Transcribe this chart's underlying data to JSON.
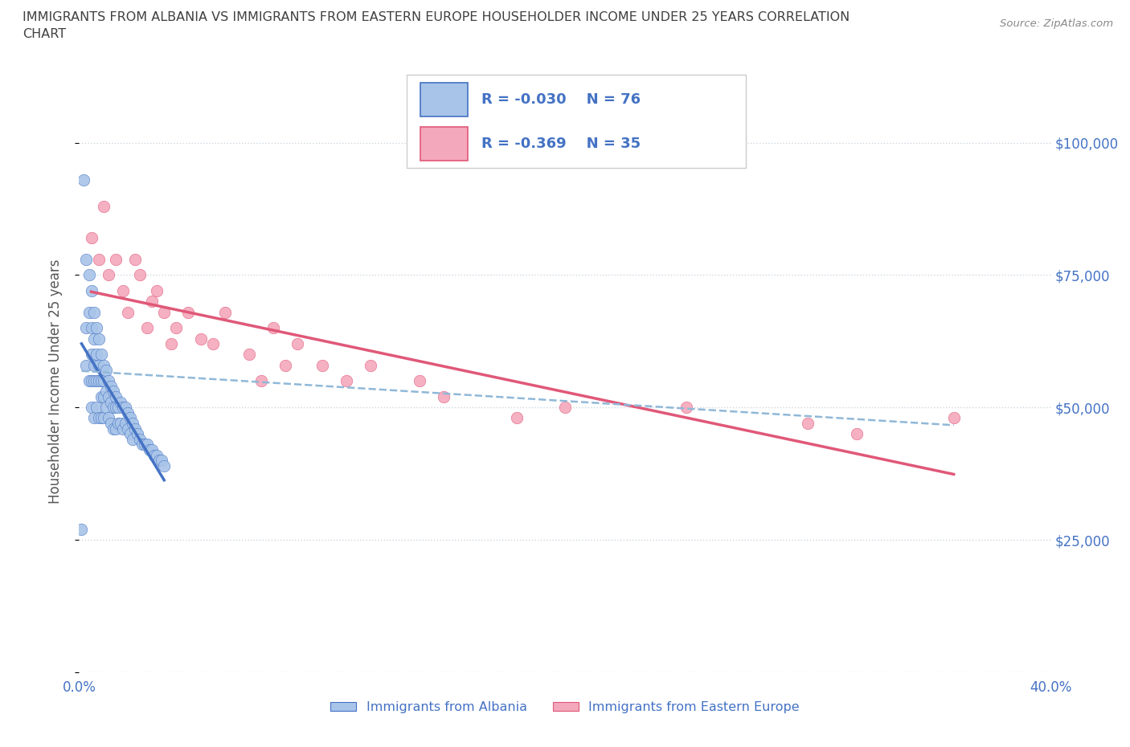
{
  "title": "IMMIGRANTS FROM ALBANIA VS IMMIGRANTS FROM EASTERN EUROPE HOUSEHOLDER INCOME UNDER 25 YEARS CORRELATION\nCHART",
  "source_text": "Source: ZipAtlas.com",
  "ylabel": "Householder Income Under 25 years",
  "legend_labels": [
    "Immigrants from Albania",
    "Immigrants from Eastern Europe"
  ],
  "R_albania": -0.03,
  "N_albania": 76,
  "R_eastern": -0.369,
  "N_eastern": 35,
  "color_albania": "#a8c4e8",
  "color_eastern": "#f4a8bc",
  "color_trendline_albania": "#4472c4",
  "color_trendline_eastern": "#e05878",
  "color_dashed": "#90b8d8",
  "color_title": "#404040",
  "color_axis_labels": "#4472c4",
  "color_legend_text": "#4472c4",
  "xlim": [
    0.0,
    0.4
  ],
  "ylim": [
    0,
    110000
  ],
  "xticks": [
    0.0,
    0.05,
    0.1,
    0.15,
    0.2,
    0.25,
    0.3,
    0.35,
    0.4
  ],
  "yticks": [
    0,
    25000,
    50000,
    75000,
    100000
  ],
  "ytick_labels": [
    "",
    "$25,000",
    "$50,000",
    "$75,000",
    "$100,000"
  ],
  "albania_x": [
    0.001,
    0.002,
    0.003,
    0.003,
    0.003,
    0.004,
    0.004,
    0.004,
    0.005,
    0.005,
    0.005,
    0.005,
    0.005,
    0.006,
    0.006,
    0.006,
    0.006,
    0.006,
    0.007,
    0.007,
    0.007,
    0.007,
    0.008,
    0.008,
    0.008,
    0.008,
    0.009,
    0.009,
    0.009,
    0.009,
    0.01,
    0.01,
    0.01,
    0.01,
    0.011,
    0.011,
    0.011,
    0.012,
    0.012,
    0.012,
    0.013,
    0.013,
    0.013,
    0.014,
    0.014,
    0.014,
    0.015,
    0.015,
    0.015,
    0.016,
    0.016,
    0.017,
    0.017,
    0.018,
    0.018,
    0.019,
    0.019,
    0.02,
    0.02,
    0.021,
    0.021,
    0.022,
    0.022,
    0.023,
    0.024,
    0.025,
    0.026,
    0.027,
    0.028,
    0.029,
    0.03,
    0.031,
    0.032,
    0.033,
    0.034,
    0.035
  ],
  "albania_y": [
    27000,
    93000,
    65000,
    78000,
    58000,
    68000,
    75000,
    55000,
    72000,
    65000,
    60000,
    55000,
    50000,
    68000,
    63000,
    58000,
    55000,
    48000,
    65000,
    60000,
    55000,
    50000,
    63000,
    58000,
    55000,
    48000,
    60000,
    55000,
    52000,
    48000,
    58000,
    55000,
    52000,
    48000,
    57000,
    53000,
    50000,
    55000,
    52000,
    48000,
    54000,
    51000,
    47000,
    53000,
    50000,
    46000,
    52000,
    50000,
    46000,
    50000,
    47000,
    51000,
    47000,
    50000,
    46000,
    50000,
    47000,
    49000,
    46000,
    48000,
    45000,
    47000,
    44000,
    46000,
    45000,
    44000,
    43000,
    43000,
    43000,
    42000,
    42000,
    41000,
    41000,
    40000,
    40000,
    39000
  ],
  "eastern_x": [
    0.005,
    0.008,
    0.01,
    0.012,
    0.015,
    0.018,
    0.02,
    0.023,
    0.025,
    0.028,
    0.03,
    0.032,
    0.035,
    0.038,
    0.04,
    0.045,
    0.05,
    0.055,
    0.06,
    0.07,
    0.075,
    0.08,
    0.085,
    0.09,
    0.1,
    0.11,
    0.12,
    0.14,
    0.15,
    0.18,
    0.2,
    0.25,
    0.3,
    0.32,
    0.36
  ],
  "eastern_y": [
    82000,
    78000,
    88000,
    75000,
    78000,
    72000,
    68000,
    78000,
    75000,
    65000,
    70000,
    72000,
    68000,
    62000,
    65000,
    68000,
    63000,
    62000,
    68000,
    60000,
    55000,
    65000,
    58000,
    62000,
    58000,
    55000,
    58000,
    55000,
    52000,
    48000,
    50000,
    50000,
    47000,
    45000,
    48000
  ]
}
